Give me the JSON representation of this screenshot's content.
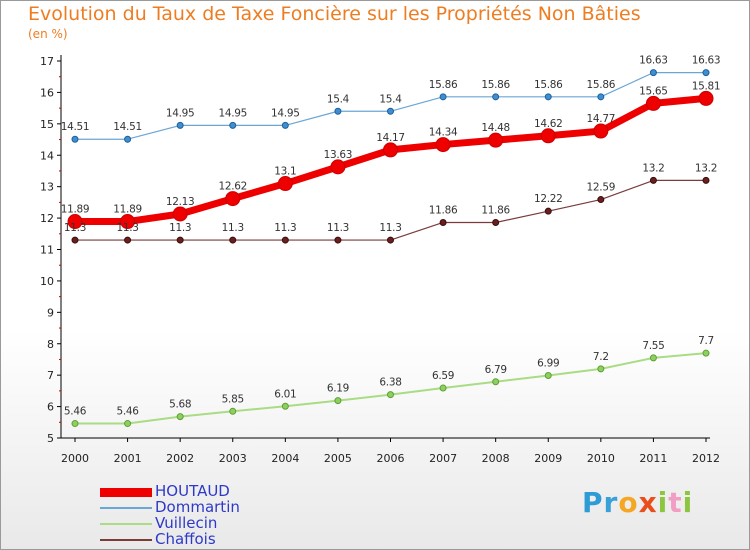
{
  "header": {
    "title": "Evolution du Taux de Taxe Foncière sur les Propriétés Non Bâties",
    "subtitle": "(en %)"
  },
  "logo": {
    "letters": [
      "P",
      "r",
      "o",
      "x",
      "i",
      "t",
      "i"
    ],
    "colors": [
      "#2e9ad6",
      "#3aa0d8",
      "#f5a623",
      "#e94e1b",
      "#8cc63f",
      "#f29dc4",
      "#8cc63f"
    ]
  },
  "chart_data": {
    "type": "line",
    "title": "Evolution du Taux de Taxe Foncière sur les Propriétés Non Bâties",
    "ylabel": "(en %)",
    "xlabel": "",
    "x": [
      "2000",
      "2001",
      "2002",
      "2003",
      "2004",
      "2005",
      "2006",
      "2007",
      "2008",
      "2009",
      "2010",
      "2011",
      "2012"
    ],
    "ylim": [
      5,
      17
    ],
    "yticks": [
      5,
      6,
      7,
      8,
      9,
      10,
      11,
      12,
      13,
      14,
      15,
      16,
      17
    ],
    "grid": false,
    "legend_position": "bottom-left",
    "series": [
      {
        "name": "HOUTAUD",
        "color": "#ee0000",
        "labels": [
          "11.89",
          "11.89",
          "12.13",
          "12.62",
          "13.1",
          "13.63",
          "14.17",
          "14.34",
          "14.48",
          "14.62",
          "14.77",
          "15.65",
          "15.81"
        ],
        "values": [
          11.89,
          11.89,
          12.13,
          12.62,
          13.1,
          13.63,
          14.17,
          14.34,
          14.48,
          14.62,
          14.77,
          15.65,
          15.81
        ]
      },
      {
        "name": "Dommartin",
        "color": "#6aa6d6",
        "labels": [
          "14.51",
          "14.51",
          "14.95",
          "14.95",
          "14.95",
          "15.4",
          "15.4",
          "15.86",
          "15.86",
          "15.86",
          "15.86",
          "16.63",
          "16.63"
        ],
        "values": [
          14.51,
          14.51,
          14.95,
          14.95,
          14.95,
          15.4,
          15.4,
          15.86,
          15.86,
          15.86,
          15.86,
          16.63,
          16.63
        ]
      },
      {
        "name": "Vuillecin",
        "color": "#a9dc84",
        "labels": [
          "5.46",
          "5.46",
          "5.68",
          "5.85",
          "6.01",
          "6.19",
          "6.38",
          "6.59",
          "6.79",
          "6.99",
          "7.2",
          "7.55",
          "7.7"
        ],
        "values": [
          5.46,
          5.46,
          5.68,
          5.85,
          6.01,
          6.19,
          6.38,
          6.59,
          6.79,
          6.99,
          7.2,
          7.55,
          7.7
        ]
      },
      {
        "name": "Chaffois",
        "color": "#7a3b3b",
        "labels": [
          "11.3",
          "11.3",
          "11.3",
          "11.3",
          "11.3",
          "11.3",
          "11.3",
          "11.86",
          "11.86",
          "12.22",
          "12.59",
          "13.2",
          "13.2"
        ],
        "values": [
          11.3,
          11.3,
          11.3,
          11.3,
          11.3,
          11.3,
          11.3,
          11.86,
          11.86,
          12.22,
          12.59,
          13.2,
          13.2
        ]
      }
    ]
  }
}
